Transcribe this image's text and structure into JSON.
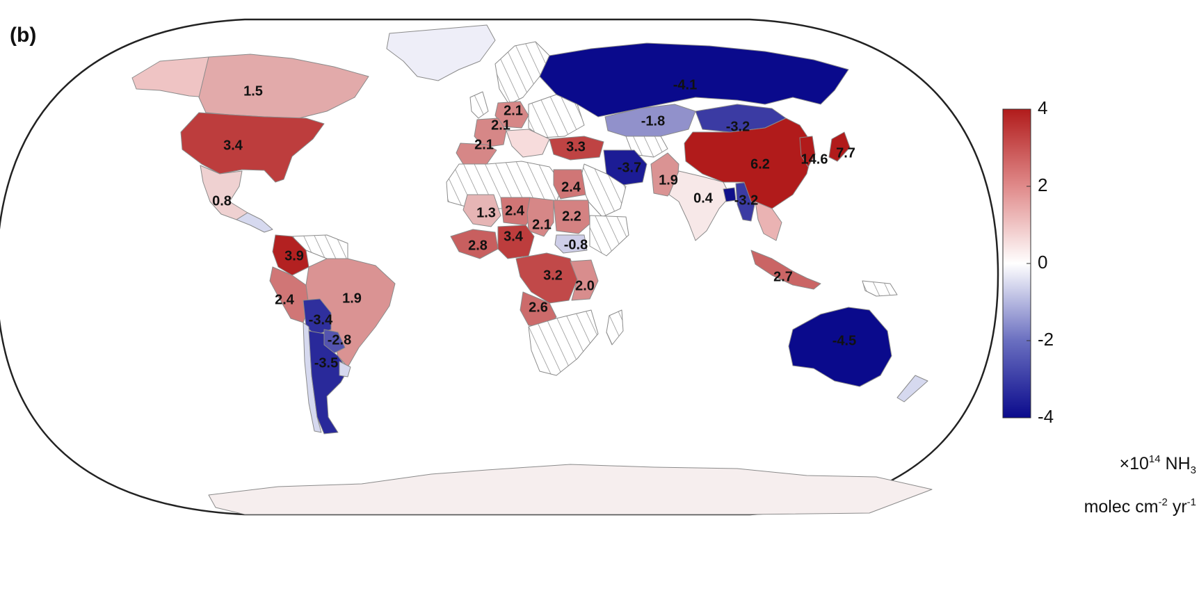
{
  "panel_label": "(b)",
  "colorbar": {
    "min": -4,
    "max": 4,
    "ticks": [
      4,
      2,
      0,
      -2,
      -4
    ],
    "tick_labels": [
      "4",
      "2",
      "0",
      "-2",
      "-4"
    ],
    "colors": {
      "low": "#0a0a8c",
      "mid": "#ffffff",
      "high": "#b11b1b"
    },
    "unit_line1_prefix": "×10",
    "unit_line1_exp": "14",
    "unit_line1_species": "NH",
    "unit_line1_sub": "3",
    "unit_line2_a": "molec cm",
    "unit_line2_exp1": "-2",
    "unit_line2_b": " yr",
    "unit_line2_exp2": "-1"
  },
  "regions": [
    {
      "name": "canada",
      "label": "1.5",
      "value": 1.5
    },
    {
      "name": "usa",
      "label": "3.4",
      "value": 3.4
    },
    {
      "name": "mexico",
      "label": "0.8",
      "value": 0.8
    },
    {
      "name": "colombia",
      "label": "3.9",
      "value": 3.9
    },
    {
      "name": "peru",
      "label": "2.4",
      "value": 2.4
    },
    {
      "name": "brazil",
      "label": "1.9",
      "value": 1.9
    },
    {
      "name": "bolivia",
      "label": "-3.4",
      "value": -3.4
    },
    {
      "name": "paraguay",
      "label": "-2.8",
      "value": -2.8
    },
    {
      "name": "argentina",
      "label": "-3.5",
      "value": -3.5
    },
    {
      "name": "germany",
      "label": "2.1",
      "value": 2.1
    },
    {
      "name": "france",
      "label": "2.1",
      "value": 2.1
    },
    {
      "name": "spain",
      "label": "2.1",
      "value": 2.1
    },
    {
      "name": "turkey",
      "label": "3.3",
      "value": 3.3
    },
    {
      "name": "russia",
      "label": "-4.1",
      "value": -4.1
    },
    {
      "name": "kazakhstan",
      "label": "-1.8",
      "value": -1.8
    },
    {
      "name": "mongolia",
      "label": "-3.2",
      "value": -3.2
    },
    {
      "name": "iran",
      "label": "-3.7",
      "value": -3.7
    },
    {
      "name": "china",
      "label": "6.2",
      "value": 6.2
    },
    {
      "name": "korea",
      "label": "14.6",
      "value": 14.6
    },
    {
      "name": "japan",
      "label": "7.7",
      "value": 7.7
    },
    {
      "name": "pakistan",
      "label": "1.9",
      "value": 1.9
    },
    {
      "name": "india",
      "label": "0.4",
      "value": 0.4
    },
    {
      "name": "myanmar",
      "label": "-3.2",
      "value": -3.2
    },
    {
      "name": "egypt",
      "label": "2.4",
      "value": 2.4
    },
    {
      "name": "mali",
      "label": "1.3",
      "value": 1.3
    },
    {
      "name": "niger",
      "label": "2.4",
      "value": 2.4
    },
    {
      "name": "chad",
      "label": "2.1",
      "value": 2.1
    },
    {
      "name": "sudan",
      "label": "2.2",
      "value": 2.2
    },
    {
      "name": "south-sudan",
      "label": "-0.8",
      "value": -0.8
    },
    {
      "name": "ghana",
      "label": "2.8",
      "value": 2.8
    },
    {
      "name": "nigeria",
      "label": "3.4",
      "value": 3.4
    },
    {
      "name": "drc",
      "label": "3.2",
      "value": 3.2
    },
    {
      "name": "tanzania",
      "label": "2.0",
      "value": 2.0
    },
    {
      "name": "angola",
      "label": "2.6",
      "value": 2.6
    },
    {
      "name": "indonesia",
      "label": "2.7",
      "value": 2.7
    },
    {
      "name": "australia",
      "label": "-4.5",
      "value": -4.5
    }
  ]
}
